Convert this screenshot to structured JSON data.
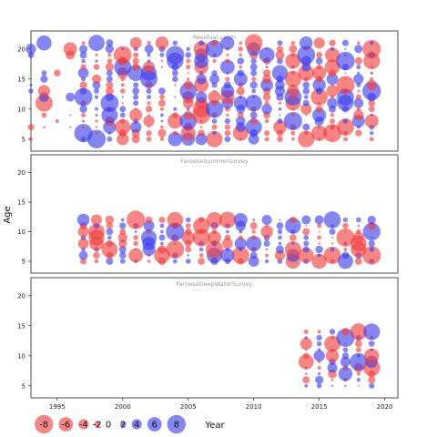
{
  "chart_data": {
    "type": "scatter",
    "encoding": "bubble",
    "ylabel": "Age",
    "xlabel": "Year",
    "xlim": [
      1993,
      2021
    ],
    "ylim": [
      3,
      23
    ],
    "xticks": [
      1995,
      2000,
      2005,
      2010,
      2015,
      2020
    ],
    "yticks": [
      5,
      10,
      15,
      20
    ],
    "colors": {
      "positive": "#3b3bea",
      "negative": "#f03c3c",
      "frame": "#222222"
    },
    "panels": [
      {
        "title": "Residual catch",
        "xstart": 1993,
        "xend": 2019,
        "agemin": 5,
        "agemax": 21,
        "seed": 11,
        "sparse_before": 1997,
        "density": 0.95
      },
      {
        "title": "FaroeseSummersurvey",
        "xstart": 1997,
        "xend": 2019,
        "agemin": 5,
        "agemax": 12,
        "seed": 23,
        "sparse_before": 0,
        "density": 1.0
      },
      {
        "title": "FaroeseDeepWaterSurvey",
        "xstart": 2014,
        "xend": 2019,
        "agemin": 5,
        "agemax": 14,
        "seed": 37,
        "sparse_before": 0,
        "density": 1.0
      }
    ],
    "legend": [
      {
        "value": -8,
        "label": "-8"
      },
      {
        "value": -6,
        "label": "-6"
      },
      {
        "value": -4,
        "label": "-4"
      },
      {
        "value": -2,
        "label": "-2"
      },
      {
        "value": 0,
        "label": "0"
      },
      {
        "value": 2,
        "label": "2"
      },
      {
        "value": 4,
        "label": "4"
      },
      {
        "value": 6,
        "label": "6"
      },
      {
        "value": 8,
        "label": "8"
      }
    ]
  }
}
